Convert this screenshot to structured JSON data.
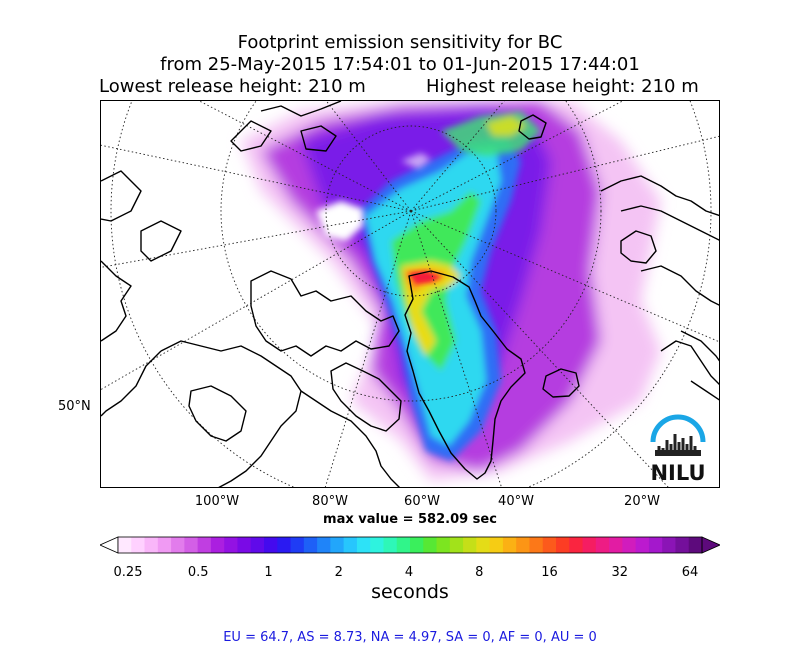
{
  "title": {
    "line1": "Footprint emission sensitivity for BC",
    "line2": "from 25-May-2015 17:54:01 to 01-Jun-2015 17:44:01",
    "release_low": "Lowest release height: 210 m",
    "release_high": "Highest release height: 210 m"
  },
  "map": {
    "longitude_ticks": [
      "100°W",
      "80°W",
      "60°W",
      "40°W",
      "20°W"
    ],
    "latitude_ticks": [
      "50°N"
    ],
    "max_value_text": "max value = 582.09 sec",
    "logo_text": "NILU"
  },
  "colorbar": {
    "tick_labels": [
      "0.25",
      "0.5",
      "1",
      "2",
      "4",
      "8",
      "16",
      "32",
      "64"
    ],
    "label": "seconds",
    "colors": [
      "#ffe8ff",
      "#ffd1ff",
      "#f9b6f9",
      "#f09af3",
      "#e27cec",
      "#d35fe6",
      "#c03ee1",
      "#ab1fe0",
      "#9312e3",
      "#7a0ae6",
      "#600aea",
      "#440aee",
      "#2a1af2",
      "#1f3cf5",
      "#1e60f7",
      "#1f84f9",
      "#22a6fb",
      "#27c6fd",
      "#2de2f7",
      "#2ef3df",
      "#2ef7b8",
      "#30f58a",
      "#3aef5c",
      "#57e834",
      "#7ce520",
      "#a2e21a",
      "#c5df18",
      "#e4dc17",
      "#f6cc14",
      "#fbb114",
      "#fc9515",
      "#fc7818",
      "#fc5a1c",
      "#fc3d24",
      "#fa2540",
      "#f51d62",
      "#ee1c84",
      "#e21ca3",
      "#d11cbd",
      "#bc1acf",
      "#a418cc",
      "#8b14b6",
      "#740f9b",
      "#5d0a7c"
    ]
  },
  "stats": "EU = 64.7,  AS = 8.73,  NA = 4.97,  SA = 0,  AF = 0,  AU = 0"
}
